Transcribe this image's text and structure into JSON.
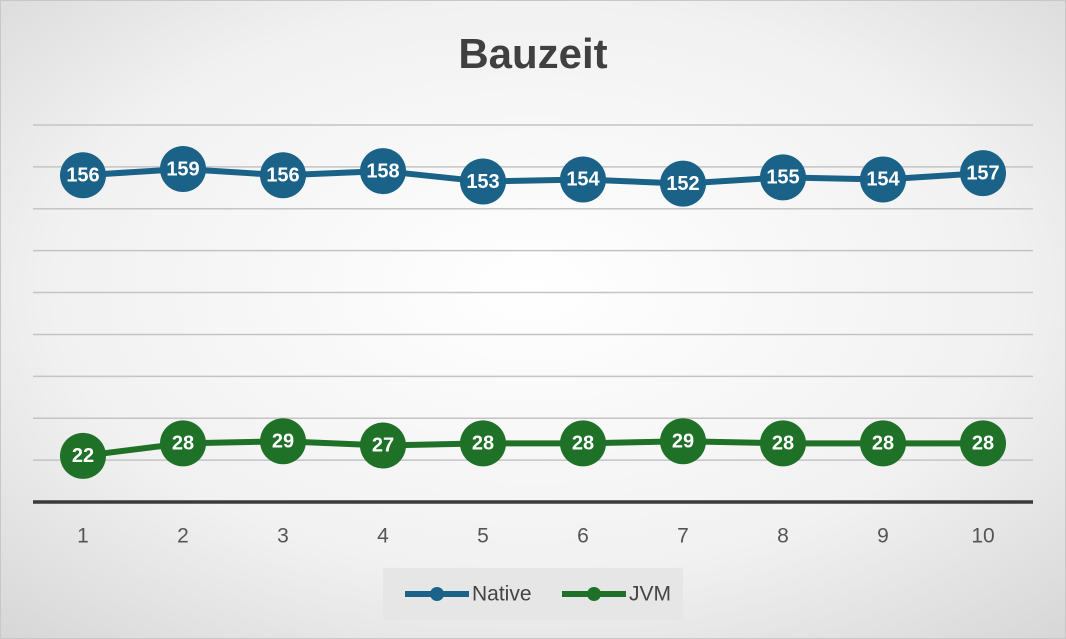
{
  "chart_data": {
    "type": "line",
    "title": "Bauzeit",
    "categories": [
      "1",
      "2",
      "3",
      "4",
      "5",
      "6",
      "7",
      "8",
      "9",
      "10"
    ],
    "series": [
      {
        "name": "Native",
        "color": "#1b6289",
        "values": [
          156,
          159,
          156,
          158,
          153,
          154,
          152,
          155,
          154,
          157
        ]
      },
      {
        "name": "JVM",
        "color": "#1e7126",
        "values": [
          22,
          28,
          29,
          27,
          28,
          28,
          29,
          28,
          28,
          28
        ]
      }
    ],
    "ylim": [
      0,
      180
    ],
    "yticks": [
      0,
      20,
      40,
      60,
      80,
      100,
      120,
      140,
      160,
      180
    ],
    "grid": true
  }
}
